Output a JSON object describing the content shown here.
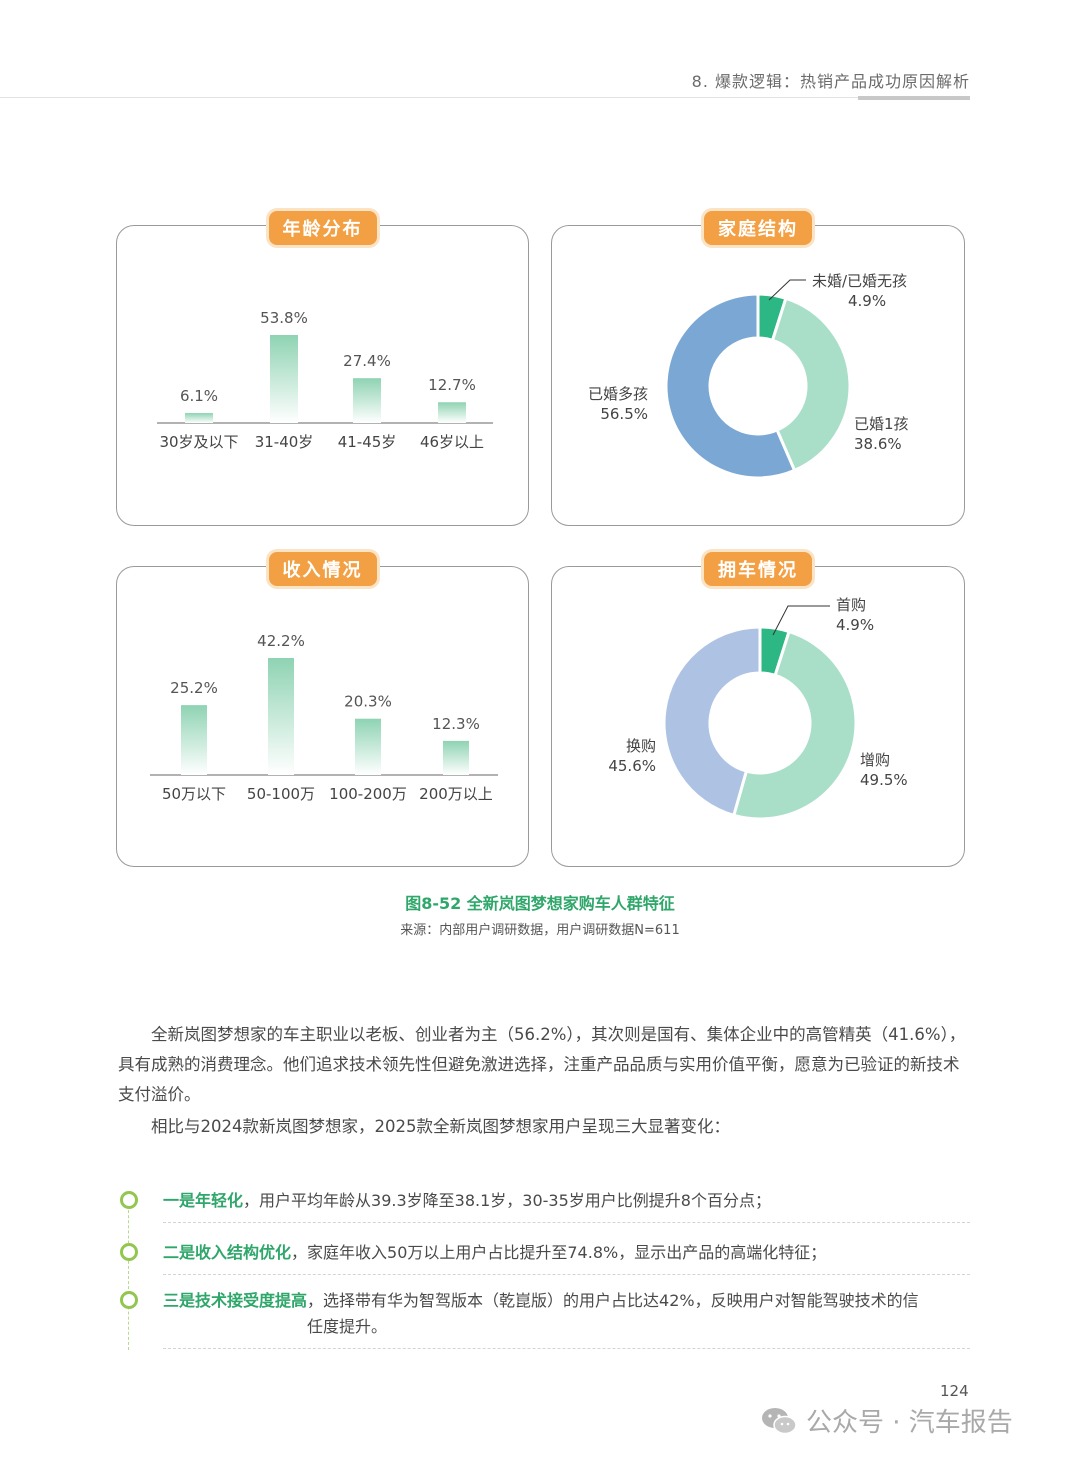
{
  "header": {
    "title": "8. 爆款逻辑：热销产品成功原因解析"
  },
  "panels": {
    "age": {
      "title": "年龄分布"
    },
    "family": {
      "title": "家庭结构"
    },
    "income": {
      "title": "收入情况"
    },
    "ownership": {
      "title": "拥车情况"
    }
  },
  "chart_data": [
    {
      "type": "bar",
      "title": "年龄分布",
      "categories": [
        "30岁及以下",
        "31-40岁",
        "41-45岁",
        "46岁以上"
      ],
      "values": [
        6.1,
        53.8,
        27.4,
        12.7
      ],
      "value_labels": [
        "6.1%",
        "53.8%",
        "27.4%",
        "12.7%"
      ],
      "unit": "%"
    },
    {
      "type": "pie",
      "title": "家庭结构",
      "labels": [
        "未婚/已婚无孩",
        "已婚1孩",
        "已婚多孩"
      ],
      "values": [
        4.9,
        38.6,
        56.5
      ],
      "value_labels": [
        "4.9%",
        "38.6%",
        "56.5%"
      ],
      "colors": [
        "#2cb784",
        "#a9dfc9",
        "#7ba7d4"
      ],
      "donut": true
    },
    {
      "type": "bar",
      "title": "收入情况",
      "categories": [
        "50万以下",
        "50-100万",
        "100-200万",
        "200万以上"
      ],
      "values": [
        25.2,
        42.2,
        20.3,
        12.3
      ],
      "value_labels": [
        "25.2%",
        "42.2%",
        "20.3%",
        "12.3%"
      ],
      "unit": "%"
    },
    {
      "type": "pie",
      "title": "拥车情况",
      "labels": [
        "首购",
        "增购",
        "换购"
      ],
      "values": [
        4.9,
        49.5,
        45.6
      ],
      "value_labels": [
        "4.9%",
        "49.5%",
        "45.6%"
      ],
      "colors": [
        "#2cb784",
        "#a9dfc9",
        "#aec3e3"
      ],
      "donut": true
    }
  ],
  "figure": {
    "caption": "图8-52 全新岚图梦想家购车人群特征",
    "source": "来源：内部用户调研数据，用户调研数据N=611"
  },
  "body": {
    "paragraph1": "全新岚图梦想家的车主职业以老板、创业者为主（56.2%），其次则是国有、集体企业中的高管精英（41.6%），具有成熟的消费理念。他们追求技术领先性但避免激进选择，注重产品品质与实用价值平衡，愿意为已验证的新技术支付溢价。",
    "paragraph2": "相比与2024款新岚图梦想家，2025款全新岚图梦想家用户呈现三大显著变化："
  },
  "changes": [
    {
      "lead": "一是年轻化",
      "text": "，用户平均年龄从39.3岁降至38.1岁，30-35岁用户比例提升8个百分点；"
    },
    {
      "lead": "二是收入结构优化",
      "text": "，家庭年收入50万以上用户占比提升至74.8%，显示出产品的高端化特征；"
    },
    {
      "lead": "三是技术接受度提高",
      "text": "，选择带有华为智驾版本（乾崑版）的用户占比达42%，反映用户对智能驾驶技术的信任度提升。"
    }
  ],
  "footer": {
    "page_number": "124",
    "watermark": "公众号 · 汽车报告"
  }
}
